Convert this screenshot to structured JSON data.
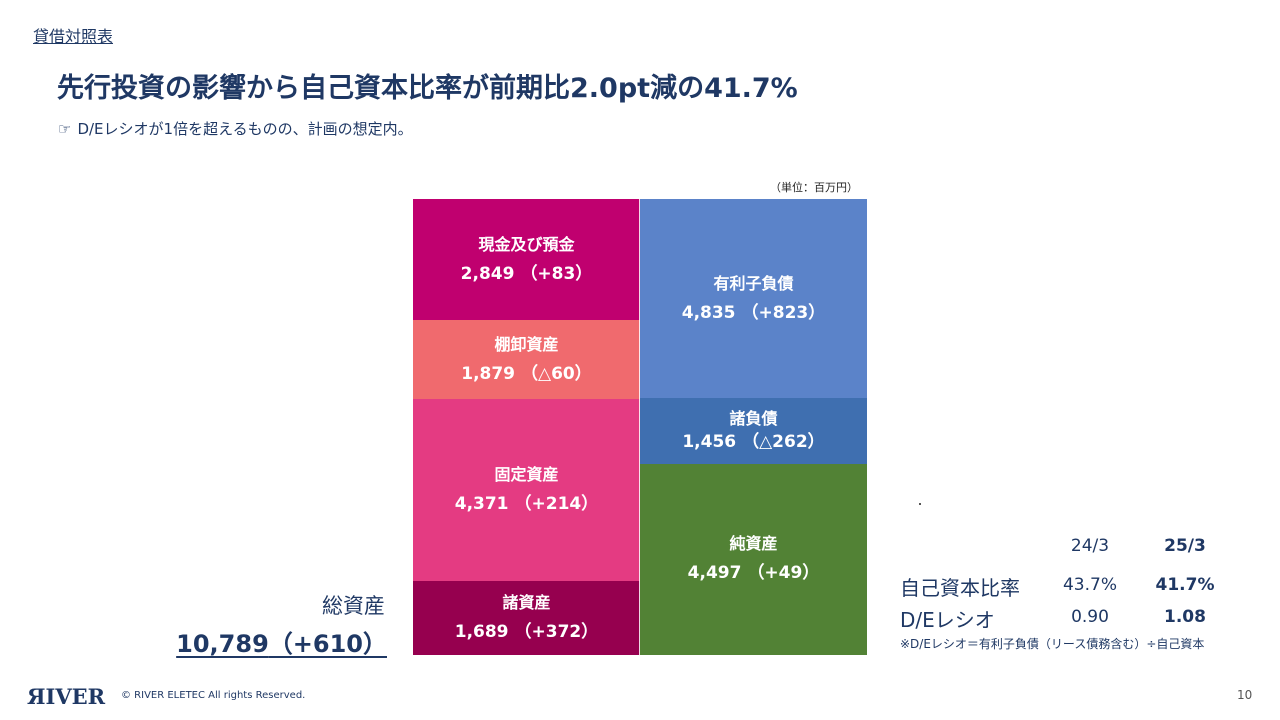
{
  "section_label": "貸借対照表",
  "headline": "先行投資の影響から自己資本比率が前期比2.0pt減の41.7%",
  "subline": {
    "icon": "pointing-hand-icon",
    "icon_glyph": "☞",
    "text": "D/Eレシオが1倍を超えるものの、計画の想定内。"
  },
  "unit_label": "（単位：百万円）",
  "chart_data": {
    "type": "table",
    "title": "",
    "unit": "百万円",
    "total_assets": {
      "label": "総資産",
      "value": "10,789",
      "change": "（+610）"
    },
    "assets": [
      {
        "name": "現金及び預金",
        "value": "2,849",
        "change": "（+83）",
        "amount": 2849,
        "color": "#c0006f"
      },
      {
        "name": "棚卸資産",
        "value": "1,879",
        "change": "（△60）",
        "amount": 1879,
        "color": "#f06a6e"
      },
      {
        "name": "固定資産",
        "value": "4,371",
        "change": "（+214）",
        "amount": 4371,
        "color": "#e43b82"
      },
      {
        "name": "諸資産",
        "value": "1,689",
        "change": "（+372）",
        "amount": 1689,
        "color": "#96004f"
      }
    ],
    "liabilities_and_equity": [
      {
        "name": "有利子負債",
        "value": "4,835",
        "change": "（+823）",
        "amount": 4835,
        "color": "#5b83c9"
      },
      {
        "name": "諸負債",
        "value": "1,456",
        "change": "（△262）",
        "amount": 1456,
        "color": "#3f6fb0"
      },
      {
        "name": "純資産",
        "value": "4,497",
        "change": "（+49）",
        "amount": 4497,
        "color": "#528235"
      }
    ]
  },
  "ratio_table": {
    "headers": [
      "",
      "24/3",
      "25/3"
    ],
    "rows": [
      {
        "label": "自己資本比率",
        "prev": "43.7%",
        "curr": "41.7%"
      },
      {
        "label": "D/Eレシオ",
        "prev": "0.90",
        "curr": "1.08"
      }
    ],
    "note": "※D/Eレシオ＝有利子負債（リース債務含む）÷自己資本"
  },
  "footer": {
    "logo": "ЯIVER",
    "copyright": "© RIVER ELETEC All rights Reserved.",
    "page_number": "10"
  }
}
